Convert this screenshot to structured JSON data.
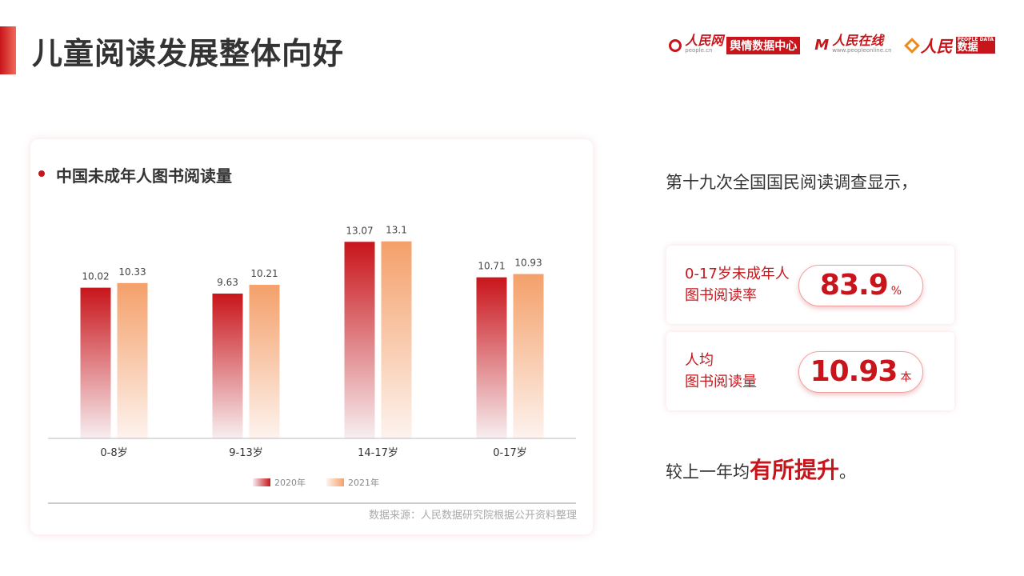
{
  "header": {
    "title": "儿童阅读发展整体向好"
  },
  "logos": {
    "people": {
      "name": "人民网",
      "box": "舆情数据中心",
      "sub": "people.cn"
    },
    "online": {
      "name": "人民在线",
      "sub": "www.peopleonline.cn"
    },
    "data": {
      "name": "人民",
      "box": "数据",
      "tiny": "PEOPLE DATA"
    }
  },
  "chart_panel": {
    "title": "中国未成年人图书阅读量",
    "source": "数据来源：人民数据研究院根据公开资料整理"
  },
  "chart_data": {
    "type": "bar",
    "title": "中国未成年人图书阅读量",
    "categories": [
      "0-8岁",
      "9-13岁",
      "14-17岁",
      "0-17岁"
    ],
    "series": [
      {
        "name": "2020年",
        "values": [
          10.02,
          9.63,
          13.07,
          10.71
        ],
        "color": "#c8151b"
      },
      {
        "name": "2021年",
        "values": [
          10.33,
          10.21,
          13.1,
          10.93
        ],
        "color": "#f4a06a"
      }
    ],
    "value_labels": [
      [
        "10.02",
        "9.63",
        "13.07",
        "10.71"
      ],
      [
        "10.33",
        "10.21",
        "13.1",
        "10.93"
      ]
    ],
    "ylim": [
      0,
      15
    ],
    "legend": "bottom-center",
    "grid": false
  },
  "summary": {
    "intro": "第十九次全国国民阅读调查显示，",
    "stats": [
      {
        "label_line1": "0-17岁未成年人",
        "label_line2": "图书阅读率",
        "value": "83.9",
        "unit": "%"
      },
      {
        "label_line1": "人均",
        "label_line2": "图书阅读量",
        "value": "10.93",
        "unit": "本"
      }
    ],
    "conclusion_prefix": "较上一年均",
    "conclusion_emphasis": "有所提升",
    "conclusion_suffix": "。"
  },
  "colors": {
    "brand_red": "#c8151b",
    "bar_2021": "#f4a06a"
  }
}
